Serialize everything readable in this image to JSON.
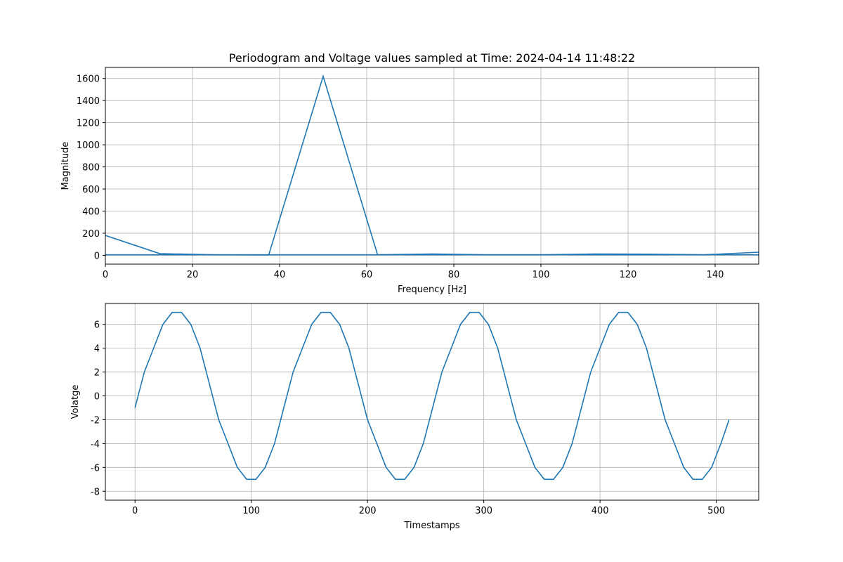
{
  "chart_data": [
    {
      "type": "line",
      "title": "Periodogram and Voltage values sampled at Time: 2024-04-14 11:48:22",
      "xlabel": "Frequency [Hz]",
      "ylabel": "Magnitude",
      "series": [
        {
          "color": "#1f77b4",
          "x": [
            0,
            12.5,
            25,
            37.5,
            50,
            62.5,
            75,
            87.5,
            100,
            112.5,
            125,
            137.5,
            150
          ],
          "values": [
            180,
            15,
            5,
            3,
            1620,
            5,
            12,
            5,
            5,
            12,
            10,
            5,
            28
          ]
        },
        {
          "color": "#1f77b4",
          "x": [
            0,
            150
          ],
          "values": [
            5,
            5
          ]
        }
      ],
      "xlim": [
        0,
        150
      ],
      "xticks": [
        0,
        20,
        40,
        60,
        80,
        100,
        120,
        140
      ],
      "ylim": [
        -80,
        1700
      ],
      "yticks": [
        0,
        200,
        400,
        600,
        800,
        1000,
        1200,
        1400,
        1600
      ],
      "grid": true
    },
    {
      "type": "line",
      "xlabel": "Timestamps",
      "ylabel": "Volatge",
      "series": [
        {
          "color": "#1f77b4",
          "x": [
            0,
            8,
            16,
            24,
            32,
            40,
            48,
            56,
            64,
            72,
            80,
            88,
            96,
            104,
            112,
            120,
            128,
            136,
            144,
            152,
            160,
            168,
            176,
            184,
            192,
            200,
            208,
            216,
            224,
            232,
            240,
            248,
            256,
            264,
            272,
            280,
            288,
            296,
            304,
            312,
            320,
            328,
            336,
            344,
            352,
            360,
            368,
            376,
            384,
            392,
            400,
            408,
            416,
            424,
            432,
            440,
            448,
            456,
            464,
            472,
            480,
            488,
            496,
            504,
            511
          ],
          "values": [
            -1,
            2,
            4,
            6,
            7,
            7,
            6,
            4,
            1,
            -2,
            -4,
            -6,
            -7,
            -7,
            -6,
            -4,
            -1,
            2,
            4,
            6,
            7,
            7,
            6,
            4,
            1,
            -2,
            -4,
            -6,
            -7,
            -7,
            -6,
            -4,
            -1,
            2,
            4,
            6,
            7,
            7,
            6,
            4,
            1,
            -2,
            -4,
            -6,
            -7,
            -7,
            -6,
            -4,
            -1,
            2,
            4,
            6,
            7,
            7,
            6,
            4,
            1,
            -2,
            -4,
            -6,
            -7,
            -7,
            -6,
            -4,
            -2
          ]
        }
      ],
      "xlim": [
        -25.5,
        536.5
      ],
      "xticks": [
        0,
        100,
        200,
        300,
        400,
        500
      ],
      "ylim": [
        -8.75,
        7.75
      ],
      "yticks": [
        -8,
        -6,
        -4,
        -2,
        0,
        2,
        4,
        6
      ],
      "grid": true
    }
  ]
}
